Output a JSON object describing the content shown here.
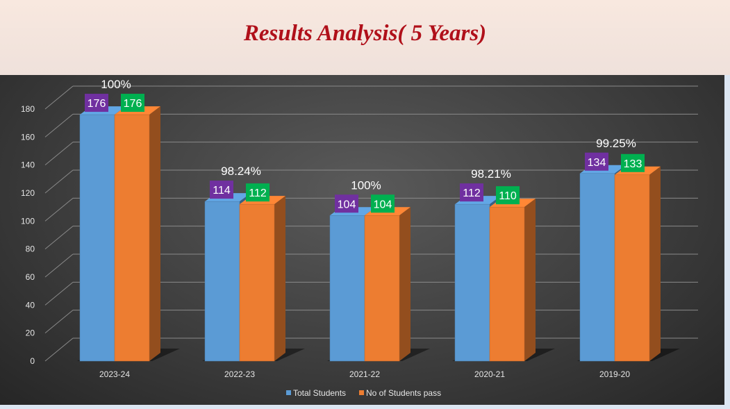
{
  "header": {
    "title": "Results Analysis( 5 Years)"
  },
  "chart_data": {
    "type": "bar",
    "title": "",
    "xlabel": "",
    "ylabel": "",
    "ylim": [
      0,
      180
    ],
    "yticks": [
      0,
      20,
      40,
      60,
      80,
      100,
      120,
      140,
      160,
      180
    ],
    "categories": [
      "2023-24",
      "2022-23",
      "2021-22",
      "2020-21",
      "2019-20"
    ],
    "series": [
      {
        "name": "Total Students",
        "values": [
          176,
          114,
          104,
          112,
          134
        ],
        "color": "#5b9bd5",
        "label_bg": "#7030a0"
      },
      {
        "name": "No of Students pass",
        "values": [
          176,
          112,
          104,
          110,
          133
        ],
        "color": "#ed7d31",
        "label_bg": "#00b050"
      }
    ],
    "annotations": [
      "100%",
      "98.24%",
      "100%",
      "98.21%",
      "99.25%"
    ],
    "legend": "bottom",
    "grid": true,
    "background": "#3e3e3e"
  }
}
